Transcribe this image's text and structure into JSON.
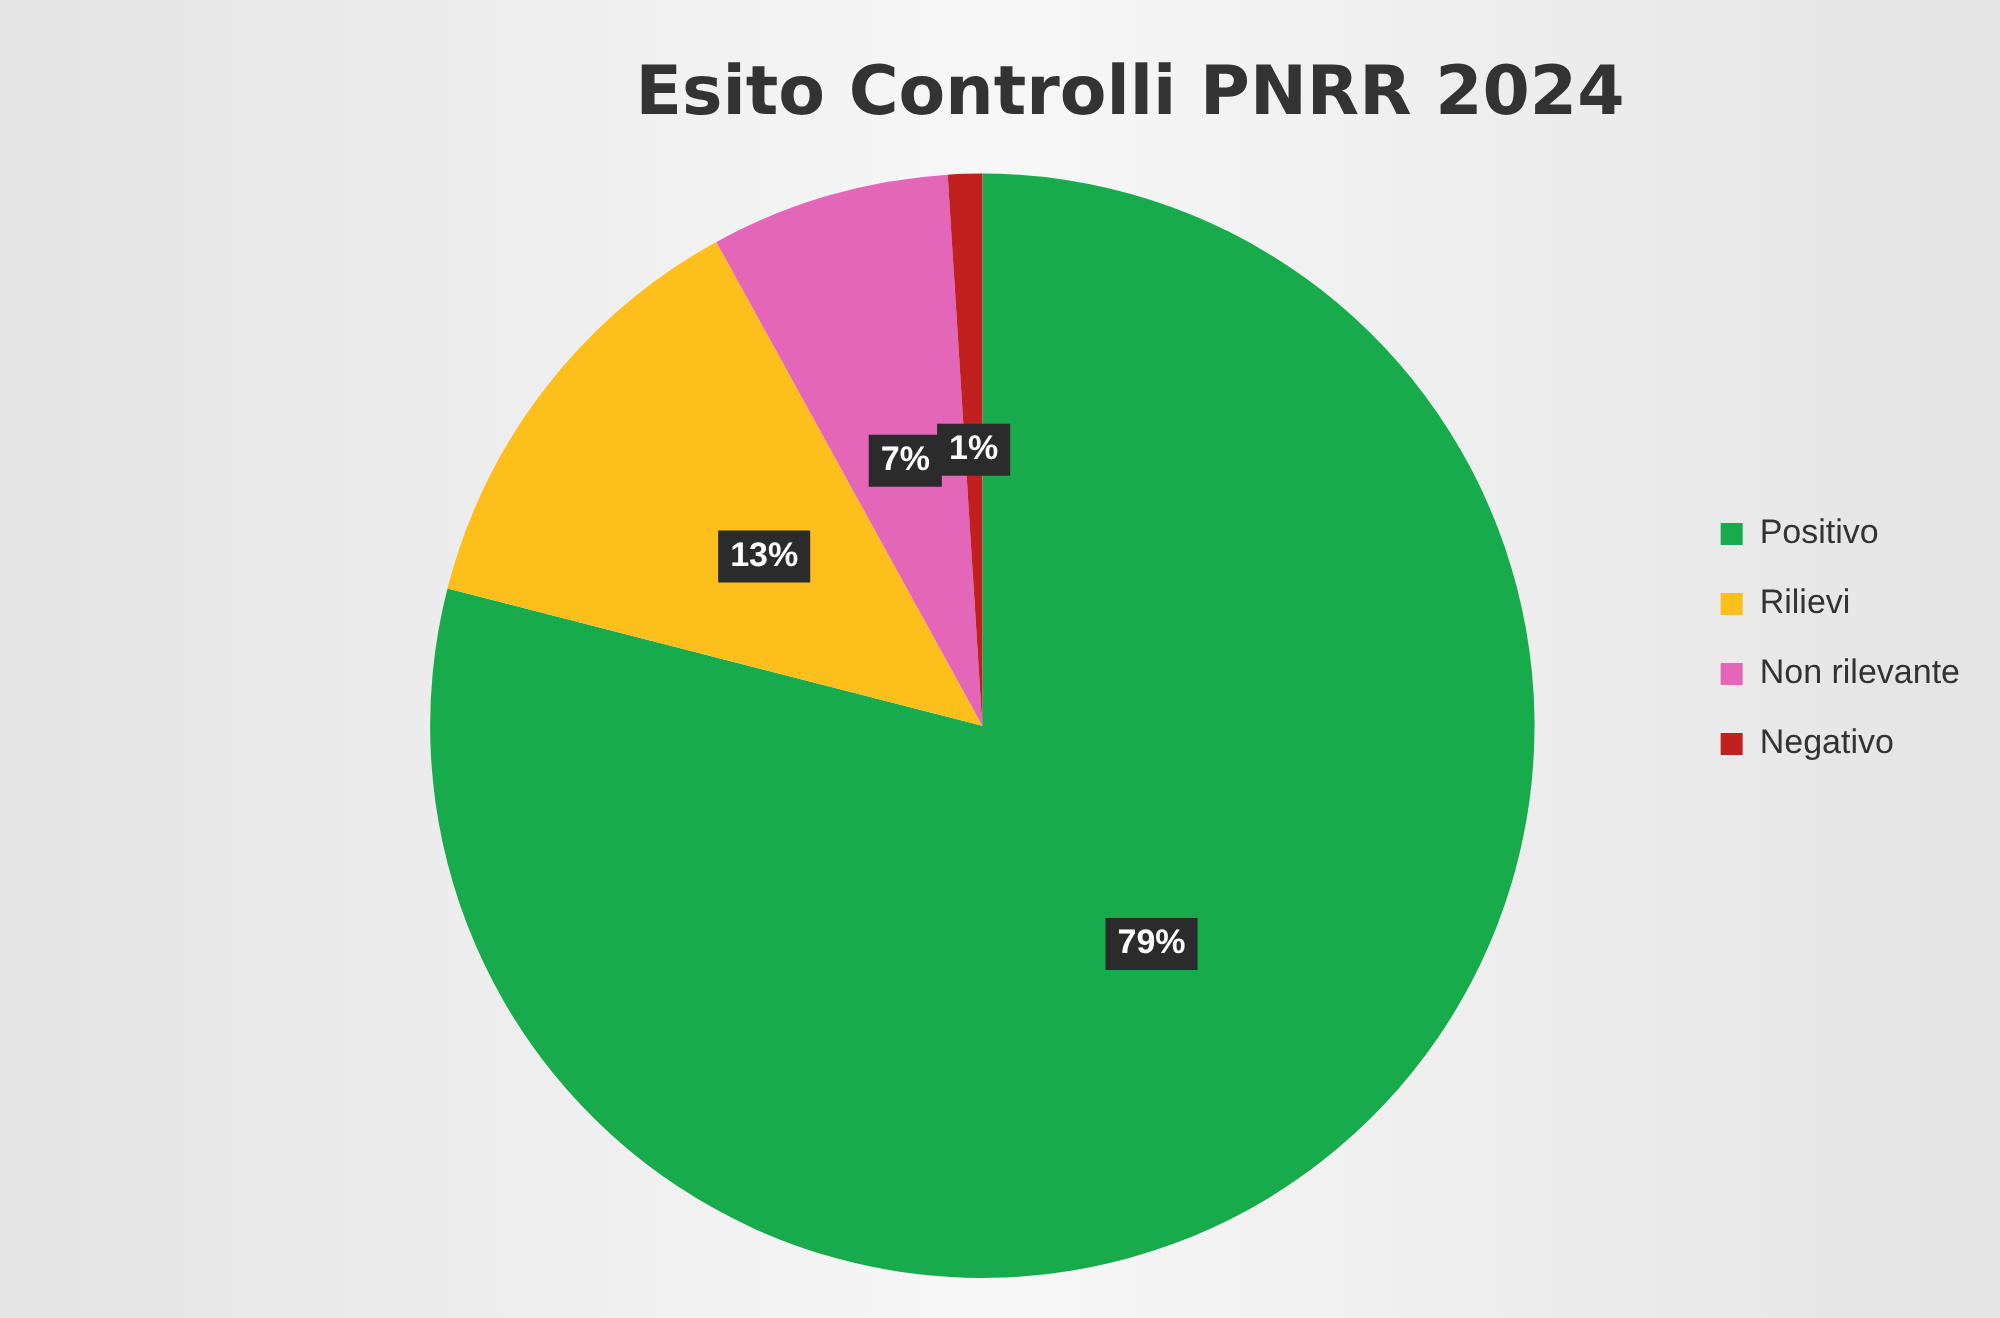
{
  "chart_data": {
    "type": "pie",
    "title": "Esito Controlli PNRR 2024",
    "categories": [
      "Positivo",
      "Rilievi",
      "Non rilevante",
      "Negativo"
    ],
    "values": [
      79,
      13,
      7,
      1
    ],
    "colors": [
      "#18ab4b",
      "#fdbf1c",
      "#e466b8",
      "#c0201e"
    ],
    "value_labels": [
      "79%",
      "13%",
      "7%",
      "1%"
    ],
    "legend": "right"
  }
}
